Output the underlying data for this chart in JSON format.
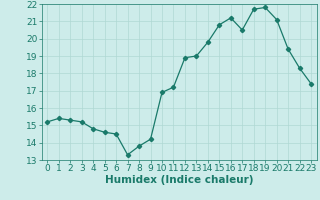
{
  "x": [
    0,
    1,
    2,
    3,
    4,
    5,
    6,
    7,
    8,
    9,
    10,
    11,
    12,
    13,
    14,
    15,
    16,
    17,
    18,
    19,
    20,
    21,
    22,
    23
  ],
  "y": [
    15.2,
    15.4,
    15.3,
    15.2,
    14.8,
    14.6,
    14.5,
    13.3,
    13.8,
    14.2,
    16.9,
    17.2,
    18.9,
    19.0,
    19.8,
    20.8,
    21.2,
    20.5,
    21.7,
    21.8,
    21.1,
    19.4,
    18.3,
    17.4
  ],
  "line_color": "#1a7a6a",
  "marker": "D",
  "marker_size": 2.2,
  "bg_color": "#cdecea",
  "grid_color": "#b0d8d4",
  "xlabel": "Humidex (Indice chaleur)",
  "xlim": [
    -0.5,
    23.5
  ],
  "ylim": [
    13,
    22
  ],
  "yticks": [
    13,
    14,
    15,
    16,
    17,
    18,
    19,
    20,
    21,
    22
  ],
  "xticks": [
    0,
    1,
    2,
    3,
    4,
    5,
    6,
    7,
    8,
    9,
    10,
    11,
    12,
    13,
    14,
    15,
    16,
    17,
    18,
    19,
    20,
    21,
    22,
    23
  ],
  "xlabel_fontsize": 7.5,
  "tick_fontsize": 6.5,
  "tick_color": "#1a7a6a",
  "axis_color": "#1a7a6a"
}
